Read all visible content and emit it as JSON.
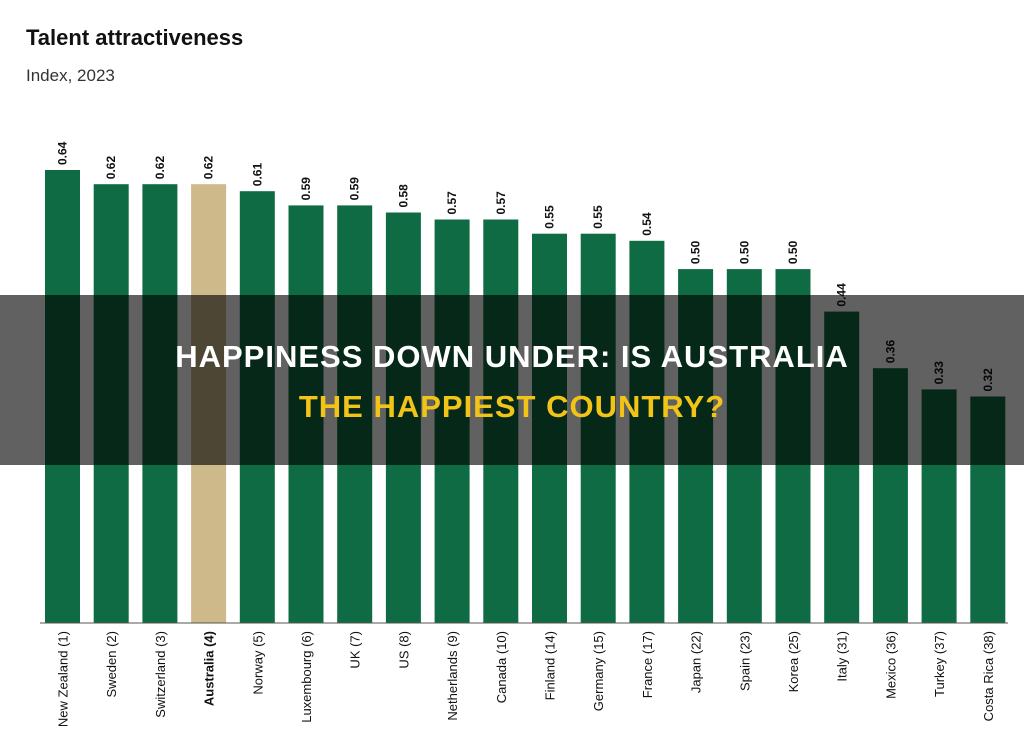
{
  "colors": {
    "bar": "#0e6b43",
    "highlight_bar": "#cdb989",
    "overlay_line1": "#ffffff",
    "overlay_line2": "#f2c418"
  },
  "overlay": {
    "line1": "HAPPINESS DOWN UNDER: IS AUSTRALIA",
    "line2": "THE HAPPIEST COUNTRY?"
  },
  "chart_data": {
    "type": "bar",
    "title": "Talent attractiveness",
    "subtitle": "Index, 2023",
    "xlabel": "",
    "ylabel": "",
    "ylim": [
      0,
      0.64
    ],
    "grid": false,
    "legend": "none",
    "highlight_category": "Australia (4)",
    "categories": [
      "New Zealand (1)",
      "Sweden (2)",
      "Switzerland (3)",
      "Australia (4)",
      "Norway (5)",
      "Luxembourg (6)",
      "UK (7)",
      "US (8)",
      "Netherlands (9)",
      "Canada (10)",
      "Finland (14)",
      "Germany (15)",
      "France (17)",
      "Japan (22)",
      "Spain (23)",
      "Korea (25)",
      "Italy (31)",
      "Mexico (36)",
      "Turkey (37)",
      "Costa Rica (38)"
    ],
    "values": [
      0.64,
      0.62,
      0.62,
      0.62,
      0.61,
      0.59,
      0.59,
      0.58,
      0.57,
      0.57,
      0.55,
      0.55,
      0.54,
      0.5,
      0.5,
      0.5,
      0.44,
      0.36,
      0.33,
      0.32
    ],
    "value_labels": [
      "0.64",
      "0.62",
      "0.62",
      "0.62",
      "0.61",
      "0.59",
      "0.59",
      "0.58",
      "0.57",
      "0.57",
      "0.55",
      "0.55",
      "0.54",
      "0.50",
      "0.50",
      "0.50",
      "0.44",
      "0.36",
      "0.33",
      "0.32"
    ]
  }
}
